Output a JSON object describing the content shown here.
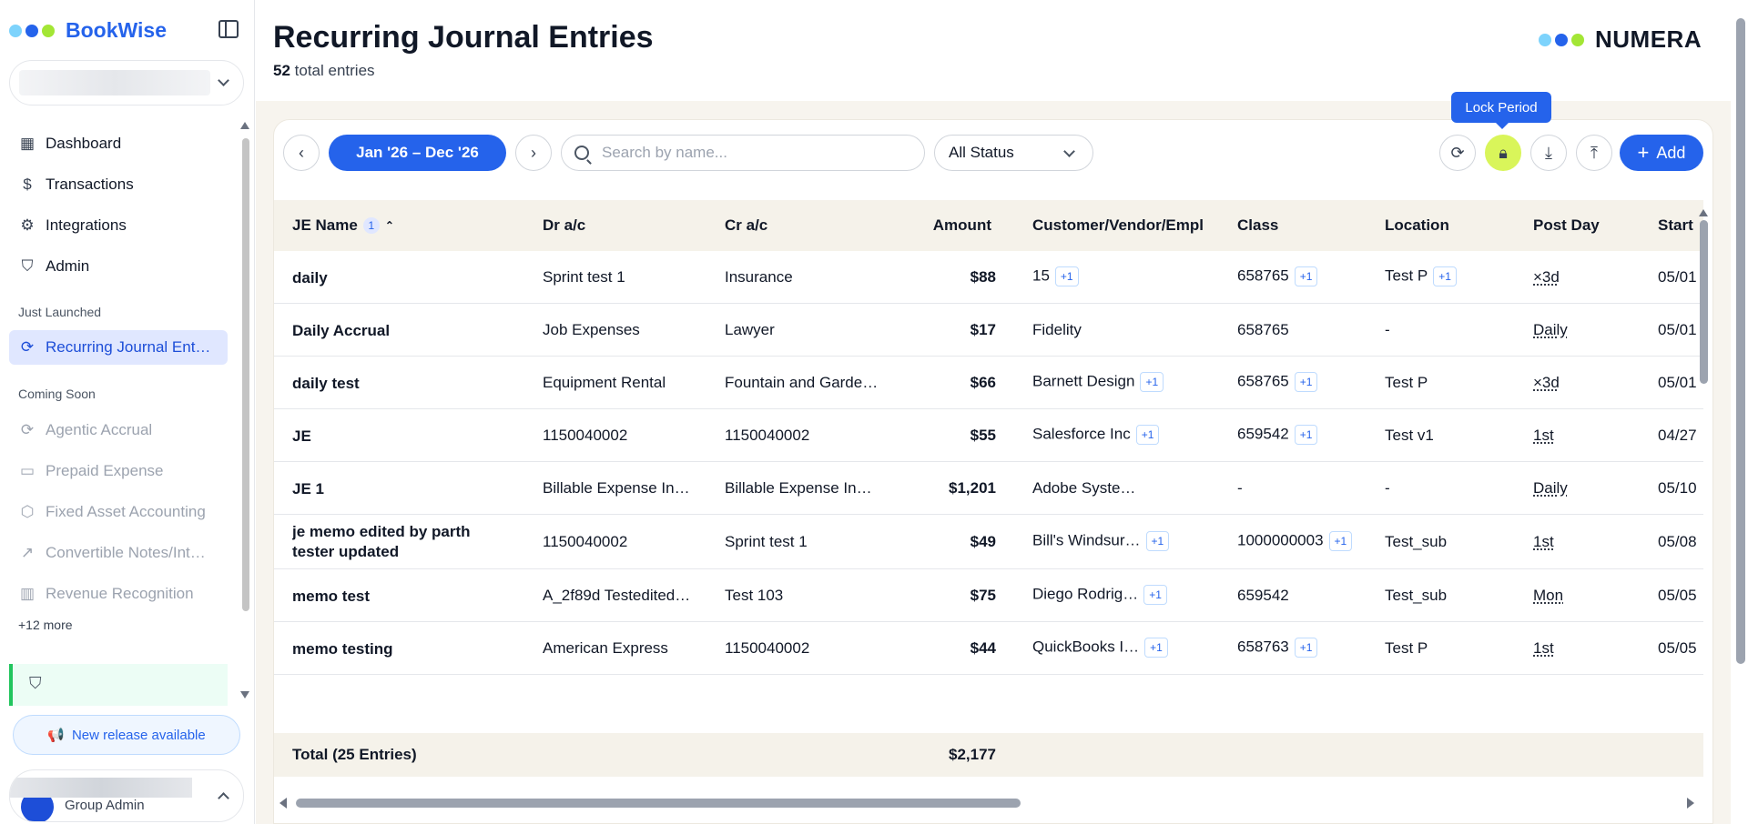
{
  "sidebar": {
    "brand": "BookWise",
    "nav_items": [
      {
        "label": "Dashboard",
        "icon": "dashboard-icon"
      },
      {
        "label": "Transactions",
        "icon": "dollar-receipt-icon"
      },
      {
        "label": "Integrations",
        "icon": "gear-icon"
      },
      {
        "label": "Admin",
        "icon": "shield-icon"
      }
    ],
    "section_just_launched": "Just Launched",
    "launched_items": [
      {
        "label": "Recurring Journal Ent…",
        "icon": "refresh-icon",
        "active": true
      }
    ],
    "section_coming_soon": "Coming Soon",
    "soon_items": [
      {
        "label": "Agentic Accrual",
        "icon": "refresh-icon"
      },
      {
        "label": "Prepaid Expense",
        "icon": "wallet-icon"
      },
      {
        "label": "Fixed Asset Accounting",
        "icon": "box-icon"
      },
      {
        "label": "Convertible Notes/Int…",
        "icon": "trend-icon"
      },
      {
        "label": "Revenue Recognition",
        "icon": "bar-chart-icon"
      }
    ],
    "more": "+12 more",
    "release": "New release available",
    "user_role": "Group Admin"
  },
  "header": {
    "title": "Recurring Journal Entries",
    "count": "52",
    "count_suffix": "total entries",
    "logo": "NUMERA"
  },
  "toolbar": {
    "date_range": "Jan '26 – Dec '26",
    "search_placeholder": "Search by name...",
    "status": "All Status",
    "tooltip": "Lock Period",
    "add": "Add"
  },
  "table": {
    "columns": {
      "name": "JE Name",
      "sort_badge": "1",
      "dr": "Dr a/c",
      "cr": "Cr a/c",
      "amount": "Amount",
      "cve": "Customer/Vendor/Empl",
      "class": "Class",
      "location": "Location",
      "post": "Post Day",
      "start": "Start"
    },
    "rows": [
      {
        "name": "daily",
        "dr": "Sprint test 1",
        "cr": "Insurance",
        "amount": "$88",
        "cve": "15",
        "cve_chip": "+1",
        "class": "658765",
        "class_chip": "+1",
        "location": "Test P",
        "loc_chip": "+1",
        "post": "×3d",
        "start": "05/01"
      },
      {
        "name": "Daily Accrual",
        "dr": "Job Expenses",
        "cr": "Lawyer",
        "amount": "$17",
        "cve": "Fidelity",
        "cve_chip": "",
        "class": "658765",
        "class_chip": "",
        "location": "-",
        "loc_chip": "",
        "post": "Daily",
        "start": "05/01"
      },
      {
        "name": "daily test",
        "dr": "Equipment Rental",
        "cr": "Fountain and Garde…",
        "amount": "$66",
        "cve": "Barnett Design",
        "cve_chip": "+1",
        "class": "658765",
        "class_chip": "+1",
        "location": "Test P",
        "loc_chip": "",
        "post": "×3d",
        "start": "05/01"
      },
      {
        "name": "JE",
        "dr": "1150040002",
        "cr": "1150040002",
        "amount": "$55",
        "cve": "Salesforce Inc",
        "cve_chip": "+1",
        "class": "659542",
        "class_chip": "+1",
        "location": "Test v1",
        "loc_chip": "",
        "post": "1st",
        "start": "04/27"
      },
      {
        "name": "JE 1",
        "dr": "Billable Expense In…",
        "cr": "Billable Expense In…",
        "amount": "$1,201",
        "cve": "Adobe Syste…",
        "cve_chip": "",
        "class": "-",
        "class_chip": "",
        "location": "-",
        "loc_chip": "",
        "post": "Daily",
        "start": "05/10"
      },
      {
        "name": "je memo edited by parth tester updated",
        "dr": "1150040002",
        "cr": "Sprint test 1",
        "amount": "$49",
        "cve": "Bill's Windsur…",
        "cve_chip": "+1",
        "class": "1000000003",
        "class_chip": "+1",
        "location": "Test_sub",
        "loc_chip": "",
        "post": "1st",
        "start": "05/08"
      },
      {
        "name": "memo test",
        "dr": "A_2f89d Testedited…",
        "cr": "Test 103",
        "amount": "$75",
        "cve": "Diego Rodrig…",
        "cve_chip": "+1",
        "class": "659542",
        "class_chip": "",
        "location": "Test_sub",
        "loc_chip": "",
        "post": "Mon",
        "start": "05/05"
      },
      {
        "name": "memo testing",
        "dr": "American Express",
        "cr": "1150040002",
        "amount": "$44",
        "cve": "QuickBooks I…",
        "cve_chip": "+1",
        "class": "658763",
        "class_chip": "+1",
        "location": "Test P",
        "loc_chip": "",
        "post": "1st",
        "start": "05/05"
      }
    ],
    "total_label": "Total (25 Entries)",
    "total_amount": "$2,177"
  },
  "colors": {
    "accent": "#2563eb",
    "lock": "#d9f55a",
    "logo_dots": [
      "#7dd3fc",
      "#2563eb",
      "#a3e635"
    ]
  }
}
